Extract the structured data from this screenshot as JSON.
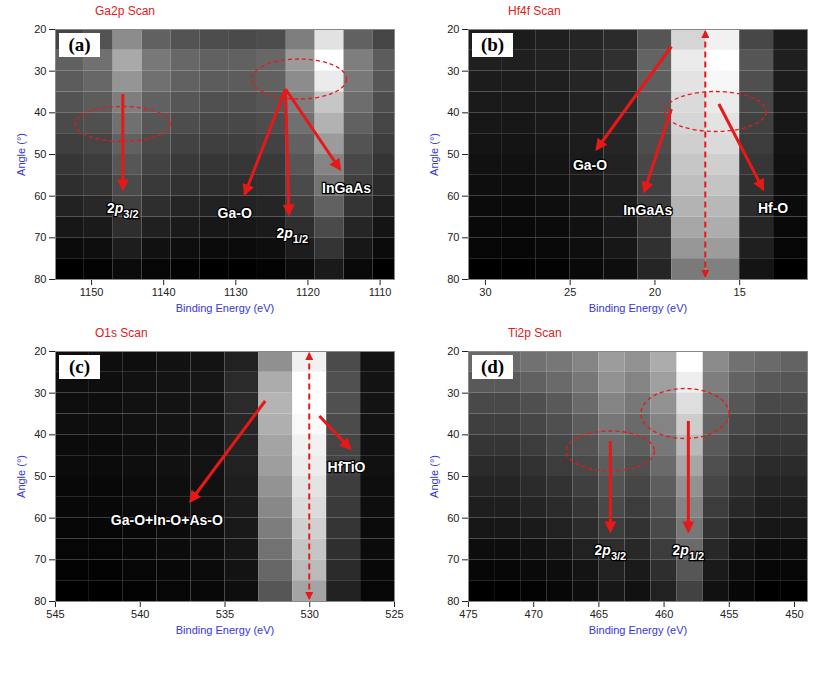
{
  "chart_data": [
    {
      "type": "heatmap",
      "panel": "(a)",
      "title": "Ga2p Scan",
      "x_label": "Binding Energy (eV)",
      "y_label": "Angle (°)",
      "xlim": [
        1155,
        1108
      ],
      "xticks": [
        1150,
        1140,
        1130,
        1120,
        1110
      ],
      "ylim": [
        20,
        80
      ],
      "yticks": [
        20,
        30,
        40,
        50,
        60,
        70,
        80
      ],
      "x": [
        1153,
        1149,
        1145,
        1141,
        1137,
        1133,
        1129,
        1125,
        1121,
        1117,
        1113,
        1109
      ],
      "y": [
        22.5,
        27.5,
        32.5,
        37.5,
        42.5,
        47.5,
        52.5,
        57.5,
        62.5,
        67.5,
        72.5,
        77.5
      ],
      "cells": [
        [
          30,
          35,
          55,
          40,
          35,
          33,
          32,
          33,
          50,
          85,
          40,
          30
        ],
        [
          40,
          45,
          65,
          48,
          42,
          40,
          40,
          42,
          60,
          95,
          50,
          38
        ],
        [
          38,
          42,
          58,
          45,
          40,
          38,
          38,
          40,
          55,
          88,
          48,
          36
        ],
        [
          35,
          38,
          50,
          40,
          36,
          34,
          34,
          36,
          50,
          75,
          44,
          33
        ],
        [
          32,
          34,
          45,
          36,
          33,
          31,
          31,
          33,
          45,
          68,
          40,
          30
        ],
        [
          28,
          30,
          40,
          32,
          29,
          28,
          28,
          29,
          40,
          60,
          35,
          27
        ],
        [
          25,
          27,
          36,
          29,
          26,
          25,
          25,
          26,
          36,
          52,
          31,
          24
        ],
        [
          22,
          24,
          32,
          26,
          23,
          22,
          22,
          23,
          32,
          46,
          28,
          21
        ],
        [
          18,
          20,
          28,
          22,
          19,
          18,
          18,
          19,
          28,
          40,
          24,
          17
        ],
        [
          14,
          15,
          22,
          17,
          15,
          14,
          14,
          15,
          22,
          32,
          19,
          13
        ],
        [
          10,
          11,
          16,
          12,
          11,
          10,
          10,
          11,
          16,
          24,
          14,
          10
        ],
        [
          6,
          7,
          10,
          8,
          7,
          6,
          6,
          7,
          10,
          15,
          9,
          6
        ]
      ],
      "annotations": [
        "2p3/2",
        "Ga-O",
        "2p1/2",
        "InGaAs"
      ]
    },
    {
      "type": "heatmap",
      "panel": "(b)",
      "title": "Hf4f Scan",
      "x_label": "Binding Energy (eV)",
      "y_label": "Angle (°)",
      "xlim": [
        31,
        11
      ],
      "xticks": [
        30,
        25,
        20,
        15
      ],
      "ylim": [
        20,
        80
      ],
      "yticks": [
        20,
        30,
        40,
        50,
        60,
        70,
        80
      ],
      "x": [
        30,
        28,
        26,
        24,
        22,
        20,
        18,
        16,
        14,
        12
      ],
      "y": [
        22.5,
        27.5,
        32.5,
        37.5,
        42.5,
        47.5,
        52.5,
        57.5,
        62.5,
        67.5,
        72.5,
        77.5
      ],
      "cells": [
        [
          15,
          15,
          16,
          18,
          20,
          35,
          80,
          90,
          30,
          15
        ],
        [
          16,
          16,
          17,
          19,
          22,
          40,
          88,
          95,
          35,
          16
        ],
        [
          15,
          15,
          16,
          18,
          21,
          38,
          85,
          92,
          33,
          15
        ],
        [
          14,
          14,
          15,
          17,
          20,
          36,
          82,
          88,
          30,
          14
        ],
        [
          13,
          13,
          14,
          16,
          19,
          34,
          80,
          85,
          28,
          13
        ],
        [
          12,
          12,
          13,
          15,
          18,
          32,
          78,
          82,
          26,
          12
        ],
        [
          11,
          11,
          12,
          14,
          17,
          30,
          75,
          78,
          24,
          11
        ],
        [
          10,
          10,
          11,
          13,
          16,
          28,
          72,
          74,
          22,
          10
        ],
        [
          9,
          9,
          10,
          12,
          15,
          26,
          68,
          70,
          20,
          9
        ],
        [
          8,
          8,
          9,
          11,
          14,
          24,
          64,
          66,
          18,
          8
        ],
        [
          7,
          7,
          8,
          10,
          13,
          22,
          58,
          60,
          16,
          7
        ],
        [
          5,
          5,
          6,
          8,
          10,
          18,
          48,
          50,
          12,
          5
        ]
      ],
      "annotations": [
        "Ga-O",
        "InGaAs",
        "Hf-O"
      ]
    },
    {
      "type": "heatmap",
      "panel": "(c)",
      "title": "O1s Scan",
      "x_label": "Binding Energy (eV)",
      "y_label": "Angle (°)",
      "xlim": [
        545,
        525
      ],
      "xticks": [
        545,
        540,
        535,
        530,
        525
      ],
      "ylim": [
        20,
        80
      ],
      "yticks": [
        20,
        30,
        40,
        50,
        60,
        70,
        80
      ],
      "x": [
        544,
        542,
        540,
        538,
        536,
        534,
        532,
        530,
        528,
        526
      ],
      "y": [
        22.5,
        27.5,
        32.5,
        37.5,
        42.5,
        47.5,
        52.5,
        57.5,
        62.5,
        67.5,
        72.5,
        77.5
      ],
      "cells": [
        [
          8,
          8,
          8,
          9,
          10,
          15,
          55,
          90,
          30,
          10
        ],
        [
          8,
          8,
          9,
          10,
          11,
          18,
          65,
          95,
          32,
          10
        ],
        [
          8,
          8,
          9,
          10,
          11,
          18,
          68,
          95,
          32,
          10
        ],
        [
          8,
          8,
          9,
          10,
          11,
          17,
          66,
          93,
          30,
          10
        ],
        [
          7,
          7,
          8,
          9,
          10,
          16,
          62,
          90,
          28,
          9
        ],
        [
          7,
          7,
          8,
          9,
          10,
          15,
          60,
          88,
          27,
          9
        ],
        [
          6,
          6,
          7,
          8,
          9,
          14,
          56,
          85,
          25,
          8
        ],
        [
          6,
          6,
          7,
          8,
          9,
          13,
          52,
          82,
          24,
          8
        ],
        [
          5,
          5,
          6,
          7,
          8,
          12,
          48,
          78,
          22,
          7
        ],
        [
          5,
          5,
          6,
          7,
          8,
          11,
          44,
          74,
          20,
          7
        ],
        [
          4,
          4,
          5,
          6,
          7,
          10,
          40,
          70,
          18,
          6
        ],
        [
          3,
          3,
          4,
          5,
          6,
          8,
          34,
          62,
          15,
          5
        ]
      ],
      "annotations": [
        "Ga-O+In-O+As-O",
        "HfTiO"
      ]
    },
    {
      "type": "heatmap",
      "panel": "(d)",
      "title": "Ti2p Scan",
      "x_label": "Binding Energy (eV)",
      "y_label": "Angle (°)",
      "xlim": [
        475,
        449
      ],
      "xticks": [
        475,
        470,
        465,
        460,
        455,
        450
      ],
      "ylim": [
        20,
        80
      ],
      "yticks": [
        20,
        30,
        40,
        50,
        60,
        70,
        80
      ],
      "x": [
        474,
        472,
        470,
        468,
        466,
        464,
        462,
        460,
        458,
        456,
        454,
        452,
        450
      ],
      "y": [
        22.5,
        27.5,
        32.5,
        37.5,
        42.5,
        47.5,
        52.5,
        57.5,
        62.5,
        67.5,
        72.5,
        77.5
      ],
      "cells": [
        [
          40,
          40,
          42,
          44,
          48,
          55,
          52,
          60,
          85,
          50,
          42,
          40,
          38
        ],
        [
          35,
          35,
          37,
          40,
          44,
          52,
          48,
          56,
          80,
          46,
          38,
          35,
          34
        ],
        [
          30,
          30,
          32,
          35,
          40,
          48,
          44,
          52,
          75,
          42,
          34,
          30,
          30
        ],
        [
          27,
          27,
          29,
          32,
          36,
          44,
          40,
          48,
          70,
          38,
          30,
          27,
          27
        ],
        [
          24,
          24,
          26,
          29,
          33,
          40,
          36,
          44,
          64,
          35,
          27,
          24,
          24
        ],
        [
          21,
          21,
          23,
          26,
          30,
          36,
          32,
          40,
          58,
          32,
          24,
          21,
          21
        ],
        [
          19,
          19,
          21,
          23,
          27,
          33,
          29,
          36,
          52,
          29,
          22,
          19,
          19
        ],
        [
          17,
          17,
          19,
          21,
          24,
          30,
          26,
          33,
          48,
          26,
          20,
          17,
          17
        ],
        [
          15,
          15,
          16,
          18,
          21,
          26,
          23,
          30,
          44,
          23,
          17,
          15,
          15
        ],
        [
          12,
          12,
          13,
          15,
          18,
          22,
          20,
          26,
          40,
          20,
          14,
          12,
          12
        ],
        [
          10,
          10,
          11,
          12,
          14,
          18,
          16,
          22,
          34,
          16,
          12,
          10,
          10
        ],
        [
          8,
          8,
          9,
          10,
          12,
          15,
          13,
          18,
          28,
          13,
          10,
          8,
          8
        ]
      ],
      "annotations": [
        "2p3/2",
        "2p1/2"
      ]
    }
  ]
}
